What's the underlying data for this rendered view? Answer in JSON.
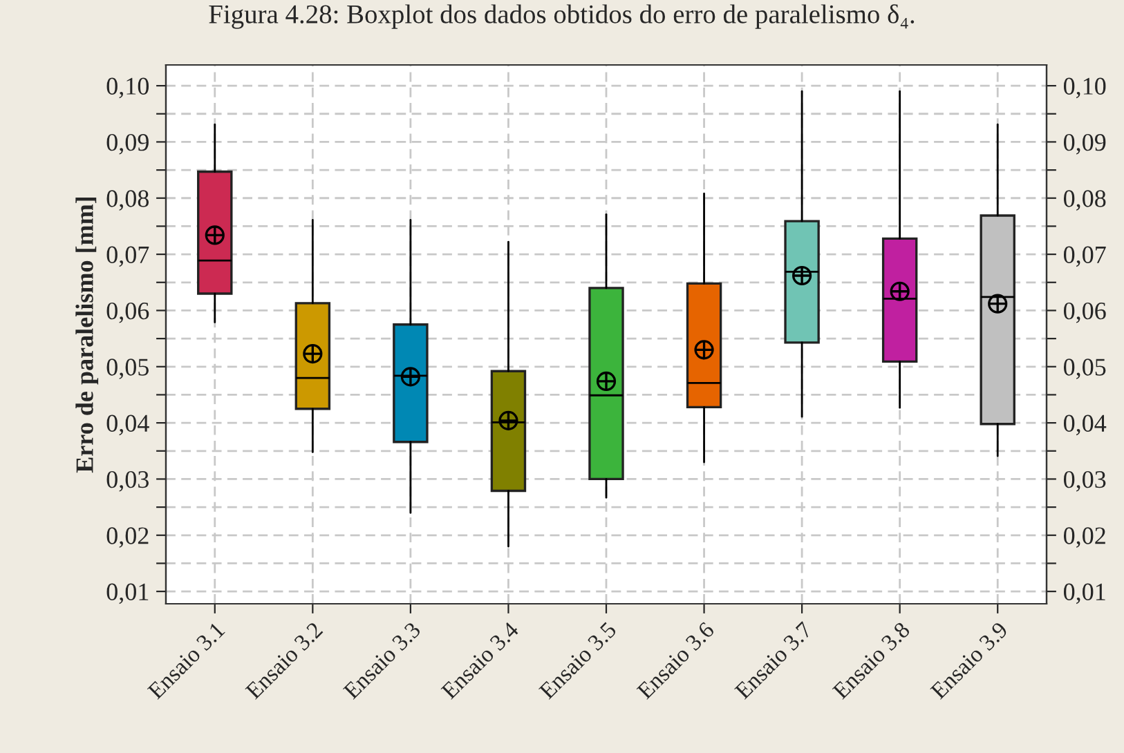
{
  "chart_data": {
    "type": "box",
    "title": "Figura 4.28: Boxplot dos dados obtidos do erro de paralelismo δ₄.",
    "ylabel": "Erro de paralelismo [mm]",
    "categories": [
      "Ensaio 3.1",
      "Ensaio 3.2",
      "Ensaio 3.3",
      "Ensaio 3.4",
      "Ensaio 3.5",
      "Ensaio 3.6",
      "Ensaio 3.7",
      "Ensaio 3.8",
      "Ensaio 3.9"
    ],
    "colors": [
      "#cc2a52",
      "#cc9900",
      "#0088b4",
      "#808000",
      "#3cb43c",
      "#e66400",
      "#70c4b4",
      "#c020a0",
      "#c0c0c0"
    ],
    "boxes": [
      {
        "low": 0.0579,
        "q1": 0.063,
        "median": 0.0689,
        "q3": 0.0847,
        "high": 0.0931,
        "mean": 0.0734
      },
      {
        "low": 0.0348,
        "q1": 0.0425,
        "median": 0.048,
        "q3": 0.0613,
        "high": 0.0761,
        "mean": 0.0523
      },
      {
        "low": 0.024,
        "q1": 0.0366,
        "median": 0.0484,
        "q3": 0.0575,
        "high": 0.0761,
        "mean": 0.0482
      },
      {
        "low": 0.018,
        "q1": 0.0279,
        "median": 0.0401,
        "q3": 0.0492,
        "high": 0.0722,
        "mean": 0.0404
      },
      {
        "low": 0.0267,
        "q1": 0.03,
        "median": 0.0449,
        "q3": 0.064,
        "high": 0.0771,
        "mean": 0.0474
      },
      {
        "low": 0.033,
        "q1": 0.0428,
        "median": 0.0471,
        "q3": 0.0648,
        "high": 0.0808,
        "mean": 0.053
      },
      {
        "low": 0.0411,
        "q1": 0.0543,
        "median": 0.0669,
        "q3": 0.0759,
        "high": 0.099,
        "mean": 0.0662
      },
      {
        "low": 0.0427,
        "q1": 0.0509,
        "median": 0.0621,
        "q3": 0.0728,
        "high": 0.099,
        "mean": 0.0634
      },
      {
        "low": 0.0341,
        "q1": 0.0398,
        "median": 0.0624,
        "q3": 0.0769,
        "high": 0.0931,
        "mean": 0.0612
      }
    ],
    "ylim": [
      0.0078,
      0.1037
    ],
    "yticks": [
      {
        "value": 0.01,
        "label": "0,01"
      },
      {
        "value": 0.015,
        "label": null
      },
      {
        "value": 0.02,
        "label": "0,02"
      },
      {
        "value": 0.025,
        "label": null
      },
      {
        "value": 0.03,
        "label": "0,03"
      },
      {
        "value": 0.035,
        "label": null
      },
      {
        "value": 0.04,
        "label": "0,04"
      },
      {
        "value": 0.045,
        "label": null
      },
      {
        "value": 0.05,
        "label": "0,05"
      },
      {
        "value": 0.055,
        "label": null
      },
      {
        "value": 0.06,
        "label": "0,06"
      },
      {
        "value": 0.065,
        "label": null
      },
      {
        "value": 0.07,
        "label": "0,07"
      },
      {
        "value": 0.075,
        "label": null
      },
      {
        "value": 0.08,
        "label": "0,08"
      },
      {
        "value": 0.085,
        "label": null
      },
      {
        "value": 0.09,
        "label": "0,09"
      },
      {
        "value": 0.095,
        "label": null
      },
      {
        "value": 0.1,
        "label": "0,10"
      }
    ],
    "y2lim": [
      0.0078,
      0.1037
    ],
    "y2ticks": [
      {
        "value": 0.01,
        "label": "0,01"
      },
      {
        "value": 0.015,
        "label": null
      },
      {
        "value": 0.02,
        "label": "0,02"
      },
      {
        "value": 0.025,
        "label": null
      },
      {
        "value": 0.03,
        "label": "0,03"
      },
      {
        "value": 0.035,
        "label": null
      },
      {
        "value": 0.04,
        "label": "0,04"
      },
      {
        "value": 0.045,
        "label": null
      },
      {
        "value": 0.05,
        "label": "0,05"
      },
      {
        "value": 0.055,
        "label": null
      },
      {
        "value": 0.06,
        "label": "0,06"
      },
      {
        "value": 0.065,
        "label": null
      },
      {
        "value": 0.07,
        "label": "0,07"
      },
      {
        "value": 0.075,
        "label": null
      },
      {
        "value": 0.08,
        "label": "0,08"
      },
      {
        "value": 0.085,
        "label": null
      },
      {
        "value": 0.09,
        "label": "0,09"
      },
      {
        "value": 0.095,
        "label": null
      },
      {
        "value": 0.1,
        "label": "0,10"
      }
    ],
    "grid": true
  }
}
